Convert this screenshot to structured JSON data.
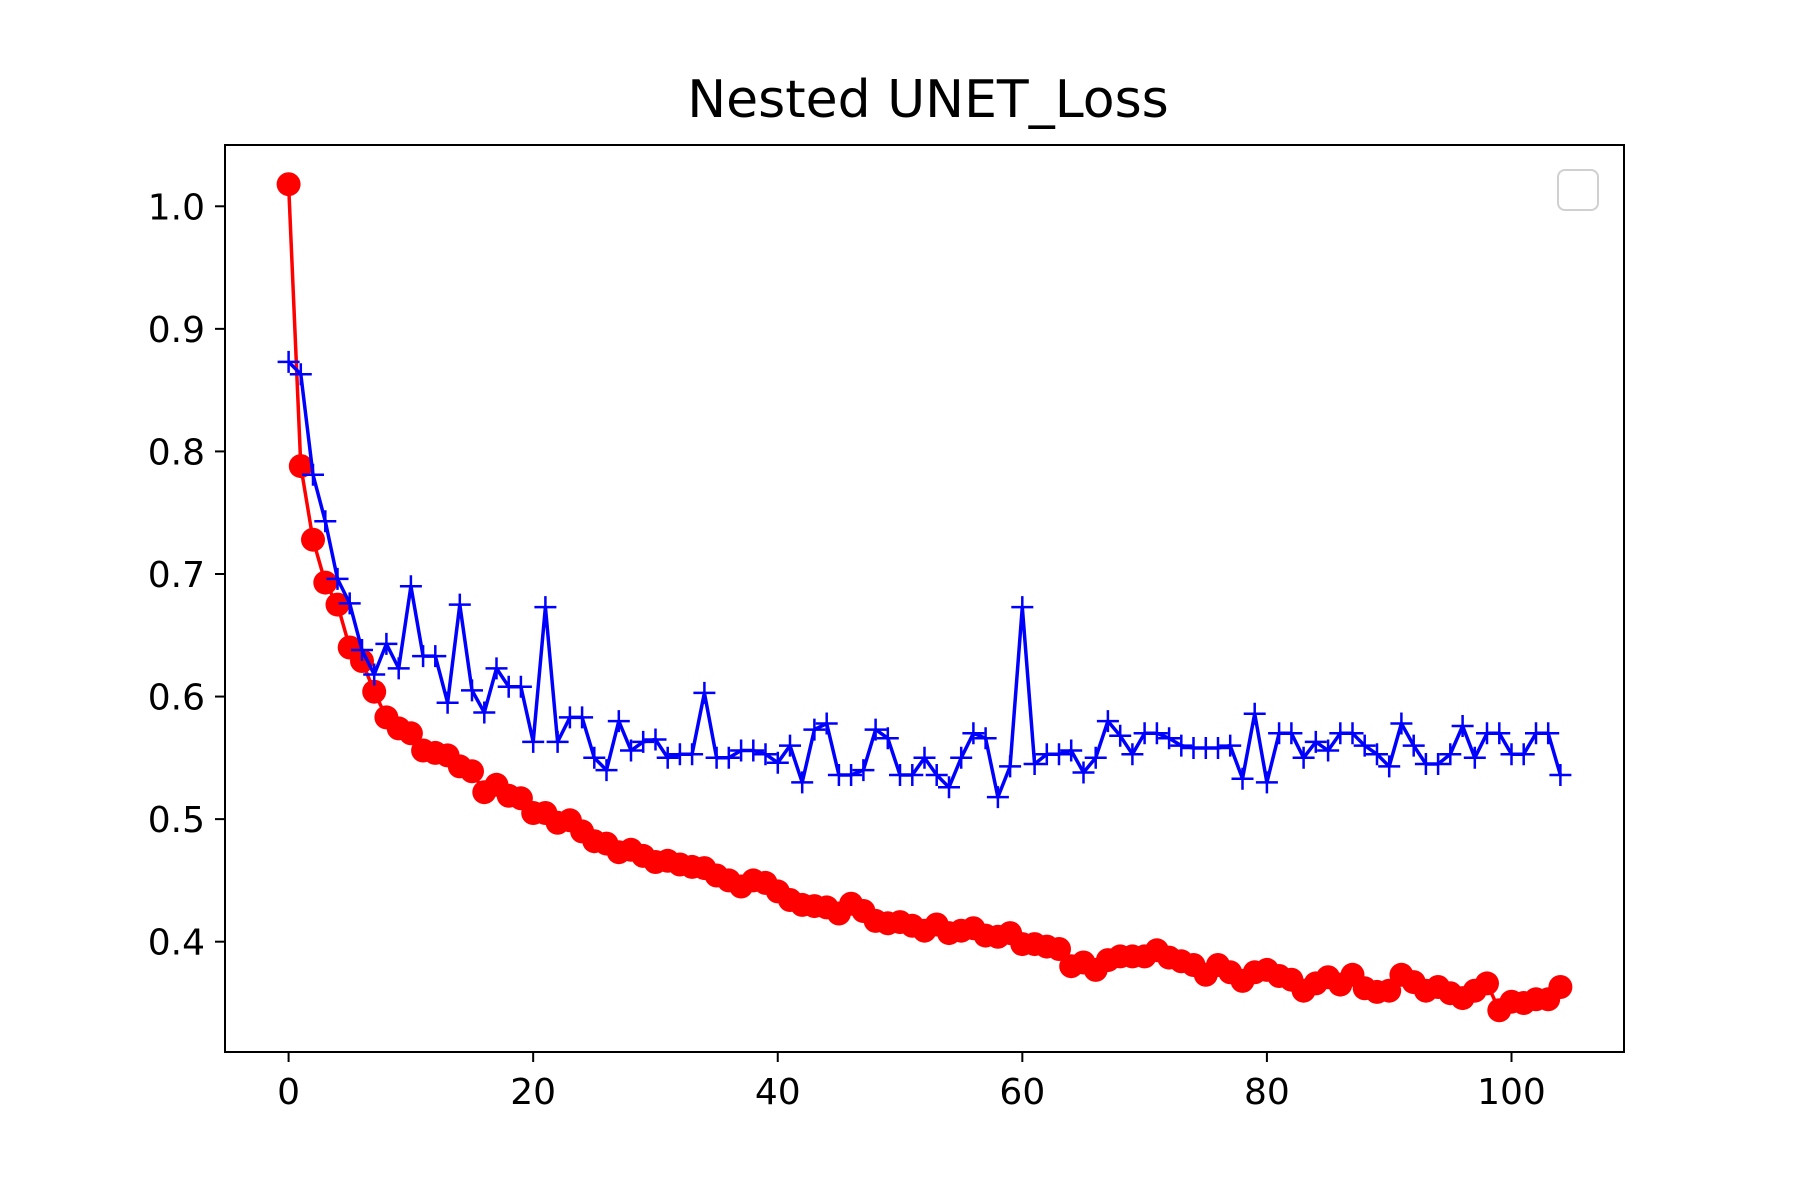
{
  "chart_data": {
    "type": "line",
    "title": "Nested UNET_Loss",
    "xlabel": "",
    "ylabel": "",
    "xlim": [
      -5.2,
      109.2
    ],
    "ylim": [
      0.31,
      1.05
    ],
    "xticks": [
      0,
      20,
      40,
      60,
      80,
      100
    ],
    "yticks": [
      0.4,
      0.5,
      0.6,
      0.7,
      0.8,
      0.9,
      1.0
    ],
    "xtick_labels": [
      "0",
      "20",
      "40",
      "60",
      "80",
      "100"
    ],
    "ytick_labels": [
      "0.4",
      "0.5",
      "0.6",
      "0.7",
      "0.8",
      "0.9",
      "1.0"
    ],
    "grid": false,
    "legend": {
      "location": "upper right",
      "entries": []
    },
    "series": [
      {
        "color": "#ff0000",
        "marker": "circle",
        "x_start": 0,
        "values": [
          1.018,
          0.788,
          0.728,
          0.693,
          0.675,
          0.64,
          0.629,
          0.604,
          0.583,
          0.574,
          0.57,
          0.556,
          0.554,
          0.552,
          0.543,
          0.539,
          0.522,
          0.528,
          0.519,
          0.517,
          0.505,
          0.505,
          0.497,
          0.499,
          0.49,
          0.482,
          0.48,
          0.473,
          0.475,
          0.47,
          0.465,
          0.466,
          0.463,
          0.461,
          0.46,
          0.454,
          0.45,
          0.445,
          0.45,
          0.448,
          0.441,
          0.434,
          0.43,
          0.429,
          0.428,
          0.423,
          0.431,
          0.425,
          0.417,
          0.415,
          0.416,
          0.413,
          0.409,
          0.414,
          0.407,
          0.409,
          0.411,
          0.405,
          0.404,
          0.407,
          0.398,
          0.398,
          0.396,
          0.394,
          0.38,
          0.383,
          0.377,
          0.385,
          0.388,
          0.388,
          0.388,
          0.393,
          0.387,
          0.384,
          0.381,
          0.373,
          0.381,
          0.375,
          0.368,
          0.375,
          0.377,
          0.372,
          0.369,
          0.36,
          0.366,
          0.371,
          0.365,
          0.373,
          0.362,
          0.359,
          0.36,
          0.373,
          0.367,
          0.36,
          0.363,
          0.358,
          0.354,
          0.36,
          0.366,
          0.344,
          0.351,
          0.35,
          0.353,
          0.353,
          0.363
        ]
      },
      {
        "color": "#0000ff",
        "marker": "plus",
        "x_start": 0,
        "values": [
          0.873,
          0.863,
          0.781,
          0.743,
          0.696,
          0.676,
          0.638,
          0.618,
          0.643,
          0.623,
          0.69,
          0.633,
          0.633,
          0.595,
          0.675,
          0.605,
          0.587,
          0.623,
          0.608,
          0.608,
          0.563,
          0.673,
          0.563,
          0.583,
          0.583,
          0.55,
          0.54,
          0.58,
          0.556,
          0.563,
          0.565,
          0.55,
          0.553,
          0.553,
          0.603,
          0.55,
          0.55,
          0.556,
          0.556,
          0.553,
          0.546,
          0.56,
          0.53,
          0.573,
          0.578,
          0.536,
          0.536,
          0.54,
          0.573,
          0.566,
          0.536,
          0.536,
          0.55,
          0.536,
          0.526,
          0.55,
          0.57,
          0.566,
          0.518,
          0.543,
          0.673,
          0.545,
          0.553,
          0.553,
          0.556,
          0.538,
          0.55,
          0.58,
          0.568,
          0.553,
          0.57,
          0.57,
          0.566,
          0.56,
          0.558,
          0.558,
          0.558,
          0.56,
          0.533,
          0.586,
          0.53,
          0.57,
          0.57,
          0.55,
          0.563,
          0.556,
          0.57,
          0.57,
          0.56,
          0.553,
          0.543,
          0.578,
          0.56,
          0.545,
          0.545,
          0.553,
          0.576,
          0.55,
          0.57,
          0.57,
          0.553,
          0.553,
          0.57,
          0.57,
          0.536
        ]
      }
    ]
  }
}
